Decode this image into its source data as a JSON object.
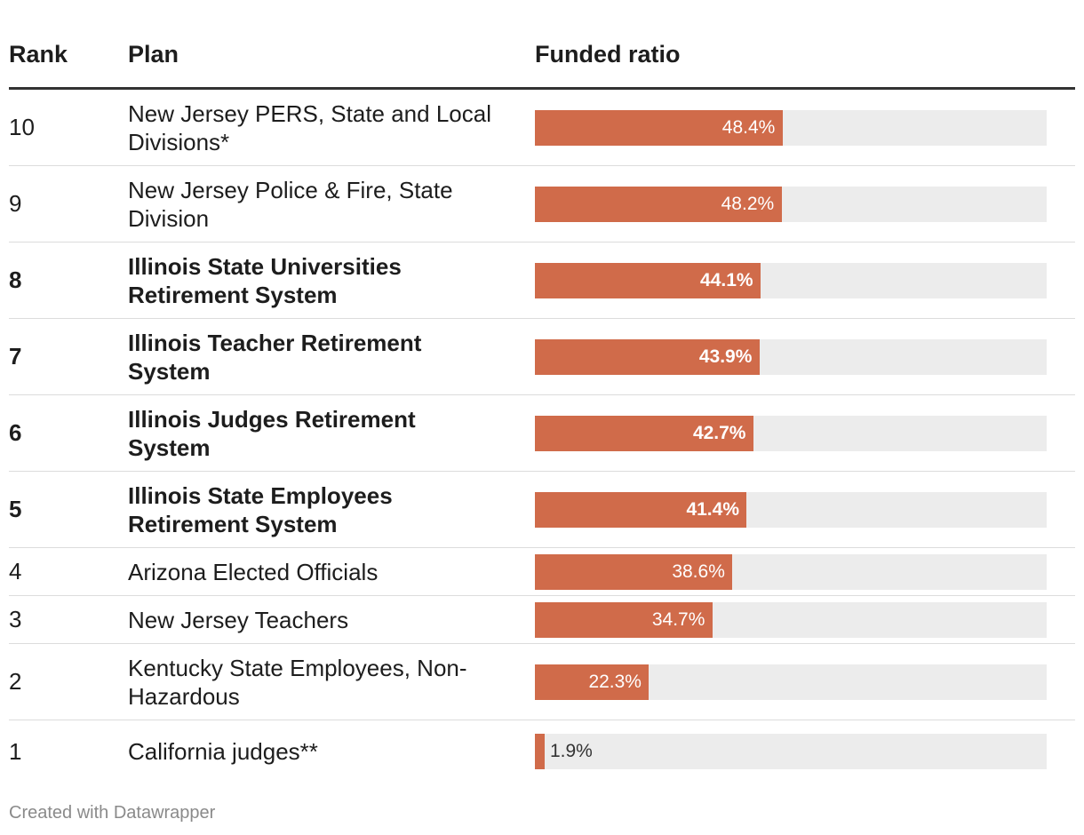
{
  "header": {
    "rank": "Rank",
    "plan": "Plan",
    "ratio": "Funded ratio"
  },
  "footer": "Created with Datawrapper",
  "colors": {
    "bar": "#d06b4a",
    "track": "#ececec"
  },
  "chart_data": {
    "type": "bar",
    "orientation": "horizontal",
    "title": "",
    "xlabel": "Funded ratio",
    "ylabel": "Plan",
    "xlim": [
      0,
      100
    ],
    "unit": "%",
    "rows": [
      {
        "rank": "10",
        "plan": "New Jersey PERS, State and Local Divisions*",
        "value": 48.4,
        "label": "48.4%",
        "bold": false
      },
      {
        "rank": "9",
        "plan": "New Jersey Police & Fire, State Division",
        "value": 48.2,
        "label": "48.2%",
        "bold": false
      },
      {
        "rank": "8",
        "plan": "Illinois State Universities Retirement System",
        "value": 44.1,
        "label": "44.1%",
        "bold": true
      },
      {
        "rank": "7",
        "plan": "Illinois Teacher Retirement System",
        "value": 43.9,
        "label": "43.9%",
        "bold": true
      },
      {
        "rank": "6",
        "plan": "Illinois Judges Retirement System",
        "value": 42.7,
        "label": "42.7%",
        "bold": true
      },
      {
        "rank": "5",
        "plan": "Illinois State Employees Retirement System",
        "value": 41.4,
        "label": "41.4%",
        "bold": true
      },
      {
        "rank": "4",
        "plan": "Arizona Elected Officials",
        "value": 38.6,
        "label": "38.6%",
        "bold": false
      },
      {
        "rank": "3",
        "plan": "New Jersey Teachers",
        "value": 34.7,
        "label": "34.7%",
        "bold": false
      },
      {
        "rank": "2",
        "plan": "Kentucky State Employees, Non-Hazardous",
        "value": 22.3,
        "label": "22.3%",
        "bold": false
      },
      {
        "rank": "1",
        "plan": "California judges**",
        "value": 1.9,
        "label": "1.9%",
        "bold": false
      }
    ]
  }
}
